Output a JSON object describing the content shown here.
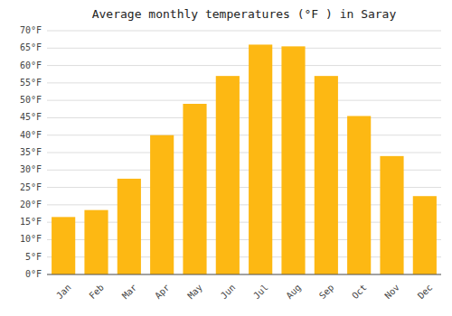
{
  "chart_data": {
    "type": "bar",
    "title": "Average monthly temperatures (°F ) in Saray",
    "categories": [
      "Jan",
      "Feb",
      "Mar",
      "Apr",
      "May",
      "Jun",
      "Jul",
      "Aug",
      "Sep",
      "Oct",
      "Nov",
      "Dec"
    ],
    "values": [
      16.5,
      18.5,
      27.5,
      40.0,
      49.0,
      57.0,
      66.0,
      65.5,
      57.0,
      45.5,
      34.0,
      22.5
    ],
    "color": "#FDB813",
    "ylim": [
      0,
      70
    ],
    "yticks": [
      {
        "value": 0,
        "label": "0°F"
      },
      {
        "value": 5,
        "label": "5°F"
      },
      {
        "value": 10,
        "label": "10°F"
      },
      {
        "value": 15,
        "label": "15°F"
      },
      {
        "value": 20,
        "label": "20°F"
      },
      {
        "value": 25,
        "label": "25°F"
      },
      {
        "value": 30,
        "label": "30°F"
      },
      {
        "value": 35,
        "label": "35°F"
      },
      {
        "value": 40,
        "label": "40°F"
      },
      {
        "value": 45,
        "label": "45°F"
      },
      {
        "value": 50,
        "label": "50°F"
      },
      {
        "value": 55,
        "label": "55°F"
      },
      {
        "value": 60,
        "label": "60°F"
      },
      {
        "value": 65,
        "label": "65°F"
      },
      {
        "value": 70,
        "label": "70°F"
      }
    ],
    "grid": true
  }
}
